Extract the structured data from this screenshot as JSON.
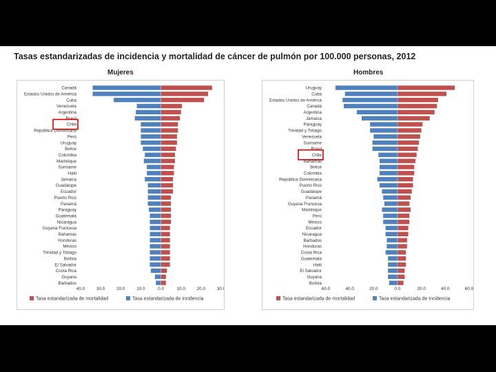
{
  "slide": {
    "title": "Tasas estandarizadas de incidencia y mortalidad de cáncer de pulmón por 100.000 personas, 2012"
  },
  "colors": {
    "mortalidad": "#c0504d",
    "incidencia": "#4f81bd",
    "highlight": "#dd0000"
  },
  "chart_data": [
    {
      "type": "bar",
      "orientation": "horizontal-diverging",
      "title": "Mujeres",
      "categories": [
        "Canadá",
        "Estados Unidos de América",
        "Cuba",
        "Venezuela",
        "Argentina",
        "Brasil",
        "Chile",
        "República Dominicana",
        "Perú",
        "Uruguay",
        "Belice",
        "Colombia",
        "Martinique",
        "Suriname",
        "Haiti",
        "Jamaica",
        "Guadalupe",
        "Ecuador",
        "Puerto Rico",
        "Panamá",
        "Paraguay",
        "Guatemala",
        "Nicaragua",
        "Guyana Francesa",
        "Bahamas",
        "Honduras",
        "México",
        "Trinidad y Tobago",
        "Bolivia",
        "El Salvador",
        "Costa Rica",
        "Guyana",
        "Barbados"
      ],
      "series": [
        {
          "name": "Tasa estandarizada de mortalidad",
          "side": "right",
          "color": "#c0504d",
          "values": [
            25.5,
            23.5,
            21.5,
            10.5,
            10,
            9.5,
            8.5,
            8.5,
            8,
            8,
            7.5,
            7,
            7,
            6.5,
            6.5,
            6,
            6,
            6,
            5,
            5,
            5,
            5,
            5,
            4.5,
            4.5,
            4.5,
            4.5,
            4.5,
            4.5,
            4.5,
            3,
            2.5,
            2.5
          ]
        },
        {
          "name": "Tasa estandarizada de incidencia",
          "side": "left",
          "color": "#4f81bd",
          "values": [
            34,
            34,
            23.5,
            12,
            12.5,
            13,
            10,
            10,
            10,
            10,
            9,
            8,
            8.5,
            7,
            7,
            8,
            6.5,
            6.5,
            6.5,
            6.5,
            6,
            5.5,
            5.5,
            5.5,
            5.5,
            5.5,
            5.5,
            5.5,
            5.5,
            5.5,
            5,
            3,
            2.5
          ]
        }
      ],
      "xlim": [
        -40,
        30
      ],
      "xticks": [
        -40,
        -30,
        -20,
        -10,
        0,
        10,
        20,
        30
      ],
      "xtick_labels": [
        "40.0",
        "30.0",
        "20.0",
        "10.0",
        "0.0",
        "10.0",
        "20.0",
        "30.0"
      ],
      "highlight_category": "Chile",
      "legend": [
        "Tasa estandarizada de mortalidad",
        "Tasa estandarizada de incidencia"
      ],
      "legend_position": "bottom",
      "grid": false
    },
    {
      "type": "bar",
      "orientation": "horizontal-diverging",
      "title": "Hombres",
      "categories": [
        "Uruguay",
        "Cuba",
        "Estados Unidos de América",
        "Canadá",
        "Argentina",
        "Jamaica",
        "Paraguay",
        "Trinidad y Tobago",
        "Venezuela",
        "Suriname",
        "Brasil",
        "Chile",
        "Bahamas",
        "Belice",
        "Colombia",
        "República Dominicana",
        "Puerto Rico",
        "Guadalupe",
        "Panamá",
        "Guyana Francesa",
        "Martinique",
        "Perú",
        "México",
        "Ecuador",
        "Nicaragua",
        "Barbados",
        "Honduras",
        "Costa Rica",
        "Guatemala",
        "Haiti",
        "El Salvador",
        "Guyana",
        "Bolivia"
      ],
      "series": [
        {
          "name": "Tasa estandarizada de mortalidad",
          "side": "right",
          "color": "#c0504d",
          "values": [
            48,
            41,
            34,
            33,
            31,
            27,
            21,
            20,
            19,
            18,
            17,
            16,
            15,
            14,
            14,
            13,
            13,
            12,
            11,
            10,
            11,
            10,
            10,
            9,
            9,
            8,
            8,
            7,
            7,
            7,
            6,
            6,
            5
          ]
        },
        {
          "name": "Tasa estandarizada de incidencia",
          "side": "left",
          "color": "#4f81bd",
          "values": [
            52,
            44,
            46,
            45,
            34,
            30,
            23,
            23,
            20,
            21,
            21,
            16,
            15,
            15,
            15,
            17,
            15,
            13,
            12,
            11,
            13,
            12,
            12,
            10,
            10,
            9,
            9,
            10,
            8,
            8,
            8,
            8,
            7
          ]
        }
      ],
      "xlim": [
        -60,
        60
      ],
      "xticks": [
        -60,
        -40,
        -20,
        0,
        20,
        40,
        60
      ],
      "xtick_labels": [
        "60.0",
        "40.0",
        "20.0",
        "0.0",
        "20.0",
        "40.0",
        "60.0"
      ],
      "highlight_category": "Chile",
      "legend": [
        "Tasa estandarizada de mortalidad",
        "Tasa estandarizada de incidencia"
      ],
      "legend_position": "bottom",
      "grid": false
    }
  ]
}
